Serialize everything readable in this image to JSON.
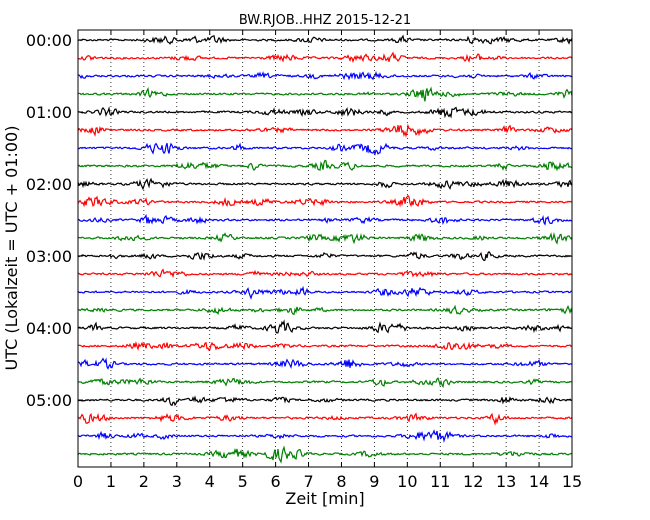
{
  "chart_data": {
    "type": "line",
    "title": "BW.RJOB..HHZ 2015-12-21",
    "xlabel": "Zeit  [min]",
    "ylabel": "UTC (Lokalzeit = UTC + 01:00)",
    "xlim": [
      0,
      15
    ],
    "xticks": [
      0,
      1,
      2,
      3,
      4,
      5,
      6,
      7,
      8,
      9,
      10,
      11,
      12,
      13,
      14,
      15
    ],
    "xtick_labels": [
      "0",
      "1",
      "2",
      "3",
      "4",
      "5",
      "6",
      "7",
      "8",
      "9",
      "10",
      "11",
      "12",
      "13",
      "14",
      "15"
    ],
    "ytick_labels": [
      "00:00",
      "01:00",
      "02:00",
      "03:00",
      "04:00",
      "05:00"
    ],
    "trace_interval_min": 15,
    "trace_count": 24,
    "trace_colors": [
      "#000000",
      "#ff0000",
      "#0000ff",
      "#008000"
    ],
    "grid": "vertical-dotted",
    "legend": "none"
  }
}
